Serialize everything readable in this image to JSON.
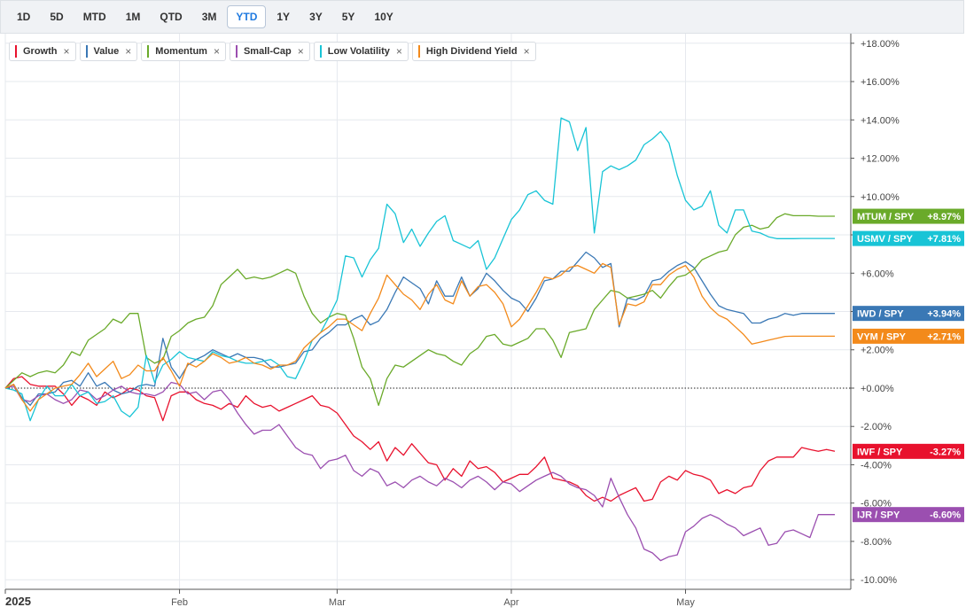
{
  "toolbar": {
    "ranges": [
      "1D",
      "5D",
      "MTD",
      "1M",
      "QTD",
      "3M",
      "YTD",
      "1Y",
      "3Y",
      "5Y",
      "10Y"
    ],
    "active": "YTD"
  },
  "legend": [
    {
      "label": "Growth",
      "color": "#e8112d"
    },
    {
      "label": "Value",
      "color": "#3a78b5"
    },
    {
      "label": "Momentum",
      "color": "#6aaa2a"
    },
    {
      "label": "Small-Cap",
      "color": "#9b4fb0"
    },
    {
      "label": "Low Volatility",
      "color": "#18c4d6"
    },
    {
      "label": "High Dividend Yield",
      "color": "#f38a1b"
    }
  ],
  "chart_data": {
    "type": "line",
    "x_tick_labels": [
      "2025",
      "Feb",
      "Mar",
      "Apr",
      "May"
    ],
    "x_tick_index": [
      0,
      21,
      40,
      61,
      82
    ],
    "y_range": [
      -10.5,
      18.5
    ],
    "y_ticks": [
      -10,
      -8,
      -6,
      -4,
      -2,
      0,
      2,
      4,
      6,
      8,
      10,
      12,
      14,
      16,
      18
    ],
    "y_tick_labels": [
      "-10.00%",
      "-8.00%",
      "-6.00%",
      "-4.00%",
      "-2.00%",
      "+0.00%",
      "+2.00%",
      "+4.00%",
      "+6.00%",
      "+8.00%",
      "+10.00%",
      "+12.00%",
      "+14.00%",
      "+16.00%",
      "+18.00%"
    ],
    "zero_line": true,
    "grid": true,
    "series": [
      {
        "name": "Growth",
        "color": "#e8112d",
        "end_label": "IWF / SPY",
        "end_value": "-3.27%",
        "values": [
          0,
          0.5,
          0.6,
          0.2,
          0.1,
          0.1,
          0.1,
          -0.3,
          -0.9,
          -0.4,
          -0.6,
          -0.9,
          -0.2,
          -0.5,
          -0.3,
          0,
          -0.1,
          -0.4,
          -0.5,
          -1.7,
          -0.4,
          -0.2,
          -0.2,
          -0.6,
          -0.8,
          -0.9,
          -1.1,
          -0.8,
          -1.0,
          -0.4,
          -0.8,
          -1.0,
          -0.9,
          -1.2,
          -1.0,
          -0.8,
          -0.6,
          -0.4,
          -0.9,
          -1.0,
          -1.3,
          -1.9,
          -2.5,
          -2.8,
          -3.2,
          -2.8,
          -3.8,
          -3.1,
          -3.5,
          -2.9,
          -3.4,
          -3.9,
          -4.0,
          -4.8,
          -4.2,
          -4.6,
          -3.8,
          -4.2,
          -4.1,
          -4.4,
          -4.9,
          -4.7,
          -4.5,
          -4.5,
          -4.1,
          -3.6,
          -4.7,
          -4.8,
          -4.9,
          -5.1,
          -5.6,
          -5.9,
          -5.7,
          -5.9,
          -5.6,
          -5.4,
          -5.2,
          -5.9,
          -5.8,
          -4.9,
          -4.6,
          -4.8,
          -4.3,
          -4.5,
          -4.6,
          -4.8,
          -5.5,
          -5.3,
          -5.5,
          -5.2,
          -5.1,
          -4.3,
          -3.8,
          -3.6,
          -3.6,
          -3.6,
          -3.1,
          -3.2,
          -3.3,
          -3.2,
          -3.3
        ]
      },
      {
        "name": "Value",
        "color": "#3a78b5",
        "end_label": "IWD / SPY",
        "end_value": "+3.94%",
        "values": [
          0,
          0.2,
          -0.5,
          -0.9,
          -0.3,
          -0.3,
          -0.2,
          0.3,
          0.4,
          0.1,
          0.8,
          0.1,
          0.3,
          -0.1,
          -0.3,
          -0.2,
          0.1,
          0.2,
          0.1,
          2.6,
          1.1,
          0.5,
          1.2,
          1.5,
          1.7,
          2.0,
          1.8,
          1.6,
          1.8,
          1.6,
          1.6,
          1.5,
          1.1,
          1.1,
          1.2,
          1.3,
          1.9,
          2.0,
          2.6,
          2.9,
          3.3,
          3.3,
          3.6,
          3.8,
          3.3,
          3.5,
          4.1,
          5.0,
          5.8,
          5.5,
          5.2,
          4.4,
          5.6,
          4.8,
          4.8,
          5.8,
          4.8,
          5.2,
          6.0,
          5.6,
          5.1,
          4.7,
          4.5,
          4.0,
          4.7,
          5.6,
          5.7,
          6.1,
          6.1,
          6.6,
          7.1,
          6.8,
          6.3,
          6.5,
          3.2,
          4.7,
          4.6,
          4.8,
          5.6,
          5.7,
          6.1,
          6.4,
          6.6,
          6.3,
          5.6,
          4.9,
          4.3,
          4.1,
          4.0,
          3.9,
          3.4,
          3.4,
          3.6,
          3.7,
          3.9,
          3.8,
          3.9,
          3.9,
          3.9,
          3.9,
          3.9
        ]
      },
      {
        "name": "Momentum",
        "color": "#6aaa2a",
        "end_label": "MTUM / SPY",
        "end_value": "+8.97%",
        "values": [
          0,
          0.4,
          0.8,
          0.6,
          0.8,
          0.9,
          0.8,
          1.2,
          1.9,
          1.7,
          2.5,
          2.8,
          3.1,
          3.6,
          3.4,
          3.9,
          3.9,
          1.6,
          1.3,
          1.5,
          2.7,
          3.0,
          3.4,
          3.6,
          3.7,
          4.3,
          5.4,
          5.8,
          6.2,
          5.7,
          5.8,
          5.7,
          5.8,
          6.0,
          6.2,
          6.0,
          4.8,
          3.9,
          3.4,
          3.7,
          3.9,
          3.8,
          2.6,
          1.1,
          0.5,
          -0.9,
          0.5,
          1.2,
          1.1,
          1.4,
          1.7,
          2.0,
          1.8,
          1.7,
          1.4,
          1.2,
          1.8,
          2.1,
          2.7,
          2.8,
          2.3,
          2.2,
          2.4,
          2.6,
          3.1,
          3.1,
          2.5,
          1.6,
          2.9,
          3.0,
          3.1,
          4.1,
          4.6,
          5.1,
          5.0,
          4.7,
          4.8,
          4.9,
          5.1,
          4.7,
          5.3,
          5.8,
          5.9,
          6.2,
          6.7,
          6.9,
          7.1,
          7.2,
          8.0,
          8.4,
          8.5,
          8.3,
          8.4,
          8.9,
          9.1,
          9.0,
          9.0,
          9.0,
          8.97,
          8.97,
          8.97
        ]
      },
      {
        "name": "Small-Cap",
        "color": "#9b4fb0",
        "end_label": "IJR / SPY",
        "end_value": "-6.60%",
        "values": [
          0,
          0.1,
          -0.6,
          -0.7,
          -0.4,
          -0.3,
          -0.6,
          -0.8,
          -0.6,
          -0.1,
          -0.2,
          -0.6,
          -0.4,
          -0.1,
          0.1,
          -0.2,
          -0.3,
          -0.3,
          -0.4,
          -0.2,
          0.3,
          0.2,
          -0.3,
          -0.2,
          -0.6,
          -0.2,
          -0.1,
          -0.6,
          -1.3,
          -1.9,
          -2.4,
          -2.2,
          -2.2,
          -1.9,
          -2.5,
          -3.1,
          -3.4,
          -3.5,
          -4.2,
          -3.8,
          -3.7,
          -3.5,
          -4.3,
          -4.6,
          -4.2,
          -4.4,
          -5.1,
          -4.9,
          -5.2,
          -4.8,
          -4.6,
          -4.9,
          -5.1,
          -4.7,
          -4.9,
          -5.2,
          -4.8,
          -4.6,
          -4.9,
          -5.3,
          -4.9,
          -5.0,
          -5.4,
          -5.1,
          -4.8,
          -4.6,
          -4.4,
          -4.6,
          -5.0,
          -5.2,
          -5.3,
          -5.6,
          -6.2,
          -4.7,
          -5.7,
          -6.6,
          -7.3,
          -8.4,
          -8.6,
          -9.0,
          -8.8,
          -8.7,
          -7.5,
          -7.2,
          -6.8,
          -6.6,
          -6.8,
          -7.1,
          -7.3,
          -7.7,
          -7.5,
          -7.3,
          -8.2,
          -8.1,
          -7.5,
          -7.4,
          -7.6,
          -7.8,
          -6.6,
          -6.6,
          -6.6
        ]
      },
      {
        "name": "Low Volatility",
        "color": "#18c4d6",
        "end_label": "USMV / SPY",
        "end_value": "+7.81%",
        "values": [
          0,
          -0.1,
          -0.3,
          -1.7,
          -0.6,
          0.1,
          -0.4,
          -0.4,
          0.2,
          -0.4,
          -0.2,
          -0.8,
          -0.7,
          -0.4,
          -1.2,
          -1.5,
          -1.0,
          1.7,
          0.3,
          1.2,
          1.5,
          1.9,
          1.6,
          1.5,
          1.4,
          1.9,
          1.7,
          1.6,
          1.4,
          1.3,
          1.3,
          1.4,
          1.5,
          1.2,
          0.6,
          0.5,
          1.4,
          2.5,
          2.9,
          3.7,
          4.6,
          6.9,
          6.8,
          5.8,
          6.7,
          7.3,
          9.6,
          9.1,
          7.6,
          8.3,
          7.4,
          8.1,
          8.7,
          9.0,
          7.7,
          7.5,
          7.3,
          7.7,
          6.2,
          6.8,
          7.8,
          8.8,
          9.3,
          10.1,
          10.3,
          9.8,
          9.6,
          14.1,
          13.9,
          12.4,
          13.6,
          8.1,
          11.3,
          11.6,
          11.4,
          11.6,
          11.9,
          12.7,
          13.0,
          13.4,
          12.8,
          11.1,
          9.8,
          9.3,
          9.5,
          10.3,
          8.5,
          8.1,
          9.3,
          9.3,
          8.2,
          8.1,
          7.9,
          7.8,
          7.8,
          7.8,
          7.81,
          7.81,
          7.81,
          7.81,
          7.81
        ]
      },
      {
        "name": "High Dividend Yield",
        "color": "#f38a1b",
        "end_label": "VYM / SPY",
        "end_value": "+2.71%",
        "values": [
          0,
          0.2,
          -0.6,
          -1.2,
          -0.6,
          -0.3,
          0,
          0.1,
          0.2,
          0.7,
          1.3,
          0.6,
          1.0,
          1.4,
          0.5,
          0.7,
          1.2,
          0.9,
          0.9,
          1.6,
          0.9,
          0.1,
          1.3,
          1.1,
          1.4,
          1.8,
          1.6,
          1.3,
          1.4,
          1.6,
          1.3,
          1.2,
          1.0,
          1.2,
          1.2,
          1.4,
          2.1,
          2.5,
          2.9,
          3.2,
          3.6,
          3.6,
          3.3,
          3.0,
          3.9,
          4.7,
          5.9,
          5.4,
          4.9,
          4.6,
          4.1,
          4.9,
          5.4,
          4.6,
          4.4,
          5.6,
          4.8,
          5.3,
          5.4,
          5.0,
          4.4,
          3.2,
          3.6,
          4.3,
          5.0,
          5.8,
          5.7,
          5.9,
          6.3,
          6.4,
          6.2,
          6.0,
          6.5,
          6.3,
          3.3,
          4.4,
          4.3,
          4.5,
          5.4,
          5.4,
          5.9,
          6.2,
          6.4,
          5.8,
          4.8,
          4.2,
          3.8,
          3.6,
          3.2,
          2.8,
          2.3,
          2.4,
          2.5,
          2.6,
          2.7,
          2.71,
          2.71,
          2.71,
          2.71,
          2.71,
          2.71
        ]
      }
    ]
  }
}
